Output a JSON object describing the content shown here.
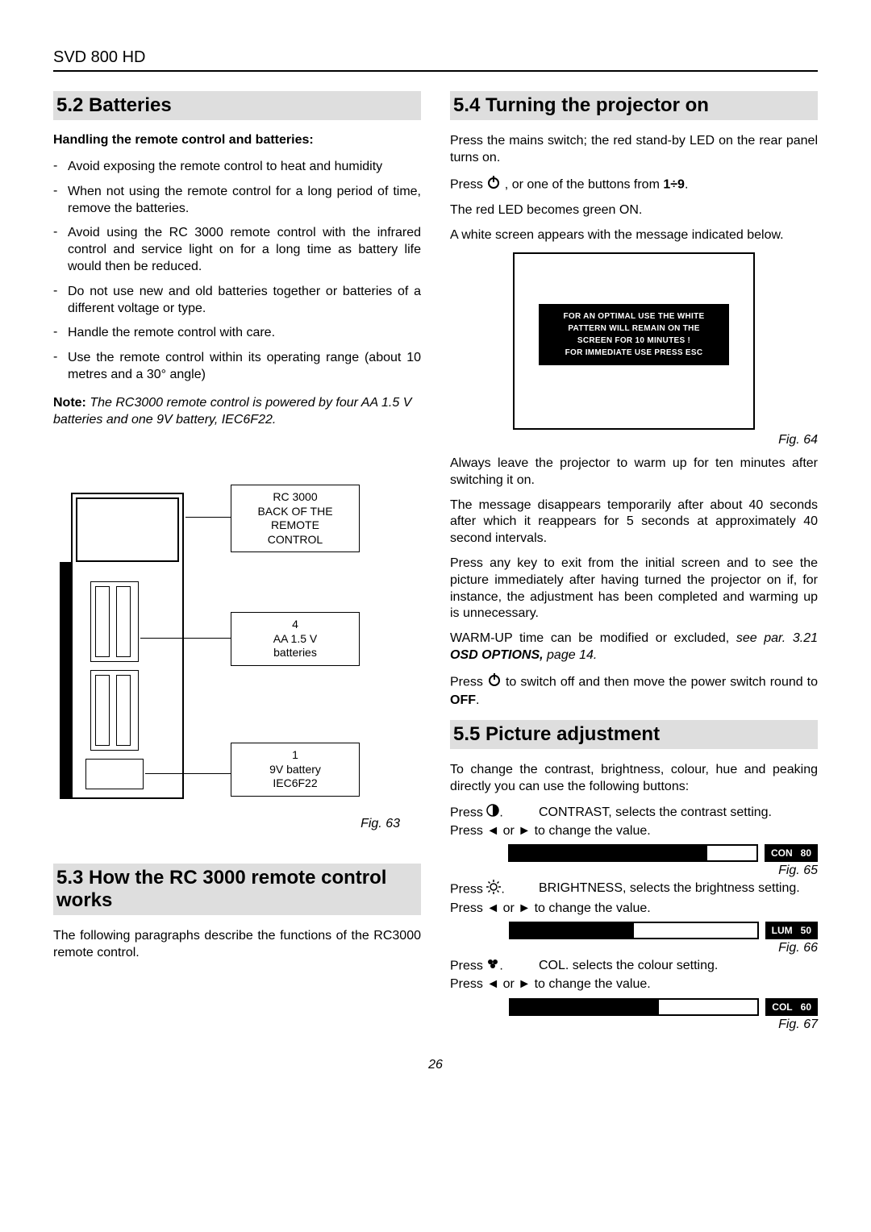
{
  "header": {
    "model": "SVD 800 HD"
  },
  "left": {
    "sec52": {
      "title": "5.2 Batteries",
      "subhead": "Handling the remote control and batteries:",
      "items": [
        "Avoid exposing the remote control to heat and humidity",
        "When not using the remote control for a long period of time, remove the batteries.",
        "Avoid using the RC 3000 remote control with the infrared control and service light on for a long time as battery life would then be reduced.",
        "Do not use new and old batteries together or batteries of  a different voltage or type.",
        "Handle the remote control with care.",
        "Use the remote control within its operating range (about 10 metres and a 30° angle)"
      ],
      "note_label": "Note:",
      "note_text": "The RC3000 remote control is powered by four AA 1.5 V batteries and one 9V battery, IEC6F22."
    },
    "fig63": {
      "label_rc": "RC 3000\nBACK OF THE\nREMOTE\nCONTROL",
      "label_aa": "4\nAA 1.5 V\nbatteries",
      "label_9v": "1\n9V battery\nIEC6F22",
      "caption": "Fig. 63"
    },
    "sec53": {
      "title": "5.3  How the RC 3000 remote control works",
      "para": "The following paragraphs describe the functions of the RC3000 remote control."
    }
  },
  "right": {
    "sec54": {
      "title": "5.4 Turning the projector on",
      "p1": "Press the mains switch; the red stand-by LED on the rear panel turns on.",
      "p2a": "Press ",
      "p2b": " , or one of the buttons from ",
      "p2c": "1÷9",
      "p2d": ".",
      "p3": "The red LED becomes green ON.",
      "p4": "A white screen appears with the message indicated below.",
      "osd_l1": "FOR AN OPTIMAL USE THE WHITE",
      "osd_l2": "PATTERN WILL REMAIN ON THE",
      "osd_l3": "SCREEN FOR 10 MINUTES !",
      "osd_l4": "FOR IMMEDIATE USE PRESS ESC",
      "fig64": "Fig. 64",
      "p5": "Always leave the projector to warm up for ten minutes after switching it on.",
      "p6": "The message disappears temporarily after about 40 seconds after which it reappears for 5 seconds at approximately 40 second  intervals.",
      "p7": "Press any key to exit from the initial screen and to see the picture immediately after having turned the projector on if, for instance, the adjustment has been completed and warming up is unnecessary.",
      "p8a": "WARM-UP time can be modified or excluded, ",
      "p8b": "see par. 3.21 ",
      "p8c": "OSD OPTIONS,",
      "p8d": " page 14.",
      "p9a": "Press ",
      "p9b": "  to switch off and then move the power switch round to ",
      "p9c": "OFF",
      "p9d": "."
    },
    "sec55": {
      "title": "5.5 Picture adjustment",
      "intro": "To change the contrast, brightness, colour, hue and peaking directly you can use the following buttons:",
      "contrast_a": "Press ",
      "contrast_b": ".",
      "contrast_desc": "CONTRAST, selects the contrast setting.",
      "change": "Press ◄ or ► to change the value.",
      "bar_con_label": "CON",
      "bar_con_val": "80",
      "bar_con_pct": 80,
      "fig65": "Fig. 65",
      "bright_a": "Press ",
      "bright_b": ".",
      "bright_desc": "BRIGHTNESS, selects the brightness setting.",
      "bar_lum_label": "LUM",
      "bar_lum_val": "50",
      "bar_lum_pct": 50,
      "fig66": "Fig. 66",
      "col_a": "Press ",
      "col_b": ".",
      "col_desc": "COL. selects the colour setting.",
      "bar_col_label": "COL",
      "bar_col_val": "60",
      "bar_col_pct": 60,
      "fig67": "Fig. 67"
    }
  },
  "page_number": "26"
}
